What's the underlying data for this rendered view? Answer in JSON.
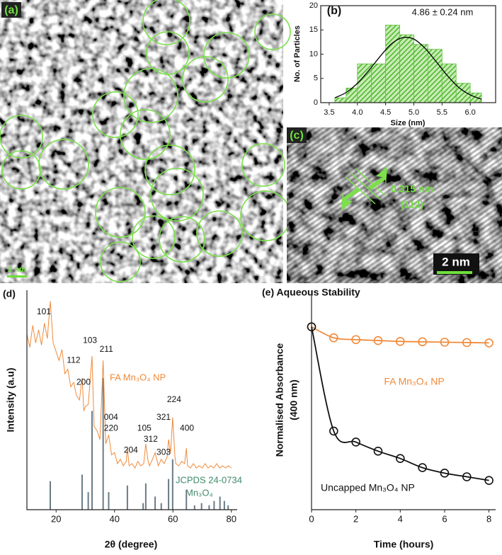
{
  "chart_data": [
    {
      "type": "image",
      "panel_label": "(a)",
      "scale_bar": "2 nm"
    },
    {
      "type": "histogram",
      "title": "(b)",
      "annotation": "4.86 ± 0.24 nm",
      "x_label": "Size (nm)",
      "y_label": "No. of Particles",
      "bins": [
        3.6,
        3.8,
        4.0,
        4.25,
        4.5,
        4.75,
        5.0,
        5.25,
        5.5,
        5.75,
        6.0,
        6.2
      ],
      "values": [
        1,
        3,
        8,
        8,
        16,
        14,
        12,
        11,
        8,
        4,
        2
      ],
      "color": "#5cc33a",
      "fit": {
        "color": "#000000",
        "x": [
          3.6,
          3.8,
          4.0,
          4.2,
          4.4,
          4.6,
          4.8,
          5.0,
          5.2,
          5.4,
          5.6,
          5.8,
          6.0,
          6.2
        ],
        "values": [
          1.0,
          2.1,
          4.0,
          6.6,
          9.5,
          12.1,
          13.4,
          13.1,
          11.2,
          8.4,
          5.5,
          3.1,
          1.6,
          0.7
        ]
      },
      "xlim": [
        3.35,
        6.45
      ],
      "xticks": [
        3.5,
        {
          "value": 4,
          "label": "4.0"
        },
        4.5,
        {
          "value": 5,
          "label": "5.0"
        },
        5.5,
        {
          "value": 6,
          "label": "6.0"
        }
      ],
      "ylim": [
        0,
        20
      ],
      "yticks": [
        0,
        5,
        10,
        15,
        20
      ]
    },
    {
      "type": "image",
      "panel_label": "(c)",
      "spacing": "0.315 nm",
      "plane": "(112)",
      "scale_bar": "2 nm"
    },
    {
      "type": "line",
      "title": "(d)",
      "x_label": "2θ (degree)",
      "y_label": "Intensity (a.u)",
      "xlim": [
        10,
        82
      ],
      "xticks": [
        20,
        40,
        60,
        80
      ],
      "ylim": [
        0,
        100
      ],
      "markers": false,
      "smooth": false,
      "series": [
        {
          "name": "FA Mn₃O₄ NP",
          "color": "#f08a3a",
          "x": [
            10,
            11,
            12,
            13,
            14,
            15,
            16,
            17,
            18,
            19,
            20,
            21,
            22,
            23,
            24,
            25,
            26,
            27,
            28,
            28.9,
            29.5,
            30,
            31,
            32.3,
            33,
            34,
            35,
            36.1,
            37,
            38,
            39,
            40,
            41,
            42,
            43,
            44,
            44.4,
            45,
            46,
            47,
            48,
            49,
            50,
            50.7,
            51.5,
            52,
            53,
            53.9,
            55,
            56,
            57,
            58,
            58.5,
            59.2,
            59.9,
            60.7,
            61,
            62,
            63,
            64,
            64.6,
            65,
            66,
            67,
            68,
            69,
            70,
            71,
            72,
            73,
            74,
            75,
            76,
            77,
            78,
            79,
            80
          ],
          "values": [
            80,
            74,
            84,
            76,
            82,
            75,
            85,
            78,
            95,
            76,
            72,
            68,
            73,
            62,
            64,
            56,
            58,
            52,
            50,
            60,
            45,
            47,
            48,
            70,
            38,
            36,
            32,
            68,
            30,
            34,
            25,
            26,
            21,
            23,
            20,
            22,
            28,
            20,
            21,
            19,
            22,
            20,
            21,
            30,
            22,
            20,
            23,
            26,
            20,
            23,
            21,
            24,
            32,
            26,
            42,
            24,
            21,
            20,
            22,
            21,
            28,
            20,
            19,
            21,
            19,
            20,
            19,
            21,
            19,
            20,
            19,
            21,
            19,
            20,
            19,
            20,
            19
          ]
        }
      ],
      "reference": {
        "name": "JCPDS 24-0734",
        "compound": "Mn₃O₄",
        "color": "#6b7b86",
        "label_color": "#3f8a6a",
        "x": [
          18,
          28.9,
          31,
          32.3,
          36.1,
          38,
          44.4,
          49.8,
          50.7,
          53.9,
          56,
          58.5,
          59.9,
          64.6,
          67.4,
          69.8,
          72.4,
          74.1,
          76.1,
          77.6,
          78.9
        ],
        "values": [
          13,
          16,
          8,
          45,
          60,
          8,
          11,
          3,
          12,
          6,
          3,
          14,
          23,
          9,
          2,
          3,
          2,
          4,
          6,
          4,
          2
        ]
      },
      "annotations": [
        {
          "text": "101",
          "x": 15.8,
          "y": 90
        },
        {
          "text": "112",
          "x": 26,
          "y": 68
        },
        {
          "text": "200",
          "x": 29.4,
          "y": 58
        },
        {
          "text": "103",
          "x": 31.6,
          "y": 77
        },
        {
          "text": "211",
          "x": 37.2,
          "y": 73
        },
        {
          "text": "004",
          "x": 38.8,
          "y": 42
        },
        {
          "text": "220",
          "x": 38.8,
          "y": 37
        },
        {
          "text": "204",
          "x": 45.6,
          "y": 27
        },
        {
          "text": "105",
          "x": 50.2,
          "y": 37
        },
        {
          "text": "312",
          "x": 52.4,
          "y": 32
        },
        {
          "text": "303",
          "x": 56.8,
          "y": 26
        },
        {
          "text": "321",
          "x": 56.8,
          "y": 42
        },
        {
          "text": "224",
          "x": 60.4,
          "y": 50
        },
        {
          "text": "400",
          "x": 64.8,
          "y": 37
        }
      ]
    },
    {
      "type": "line",
      "title": "(e) Aqueous Stability",
      "x_label": "Time (hours)",
      "y_label": [
        "Normalised Absorbance",
        "(400 nm)"
      ],
      "xlim": [
        0,
        8.3
      ],
      "xticks": [
        0,
        2,
        4,
        6,
        8
      ],
      "ylim": [
        0,
        1.2
      ],
      "markers": true,
      "smooth": true,
      "x": [
        0,
        1,
        2,
        3,
        4,
        5,
        6,
        7,
        8
      ],
      "series": [
        {
          "name": "FA Mn₃O₄ NP",
          "color": "#f08a3a",
          "values": [
            1.0,
            0.94,
            0.93,
            0.925,
            0.92,
            0.918,
            0.916,
            0.914,
            0.912
          ]
        },
        {
          "name": "Uncapped Mn₃O₄ NP",
          "color": "#111111",
          "values": [
            1.0,
            0.43,
            0.37,
            0.32,
            0.28,
            0.23,
            0.2,
            0.18,
            0.16
          ]
        }
      ]
    }
  ]
}
